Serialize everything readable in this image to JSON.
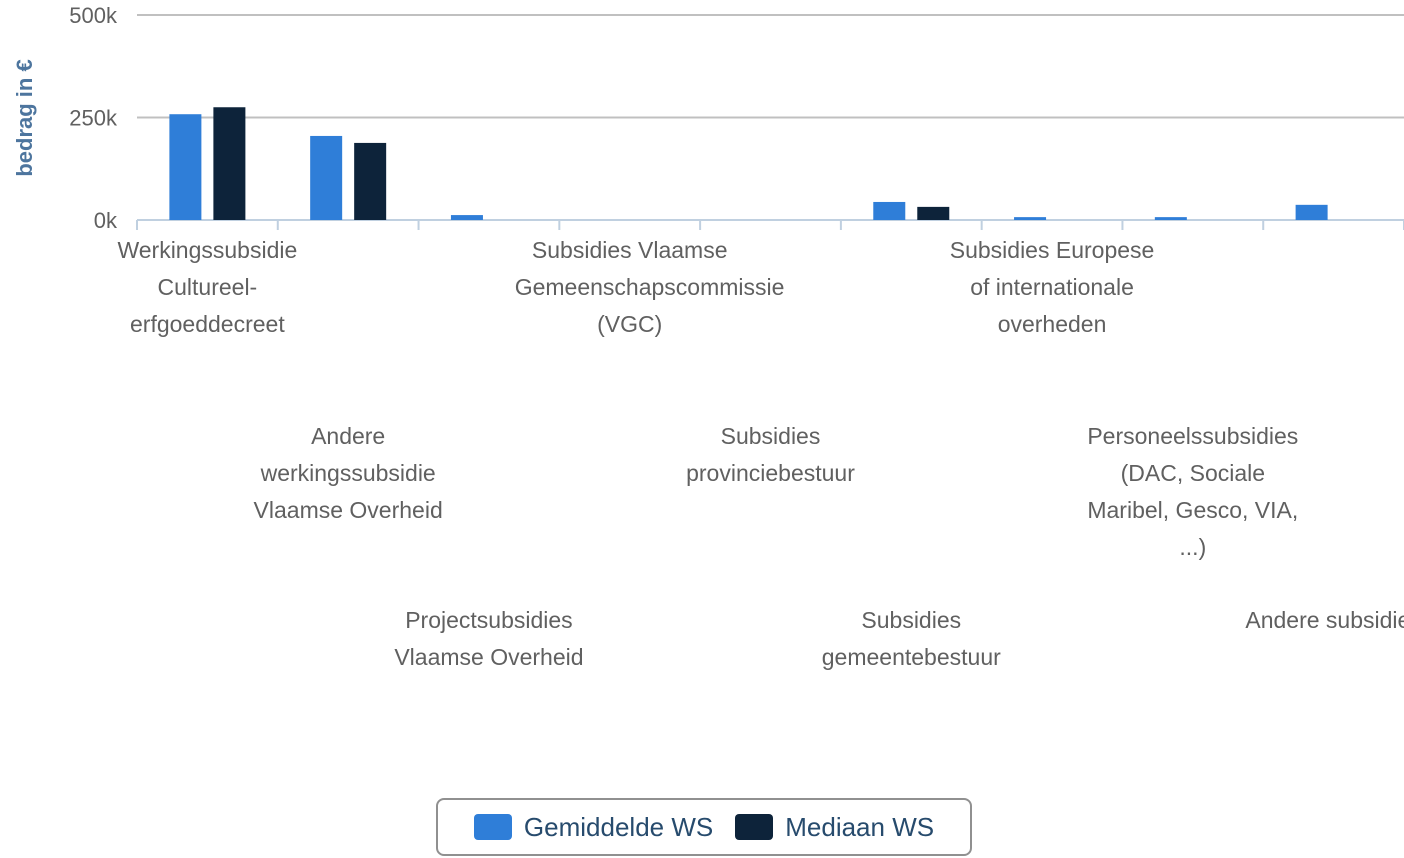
{
  "chart_data": {
    "type": "bar",
    "y_axis_label": "bedrag in €",
    "categories": [
      "Werkingssubsidie Cultureel-erfgoeddecreet",
      "Andere werkingssubsidie Vlaamse Overheid",
      "Projectsubsidies Vlaamse Overheid",
      "Subsidies Vlaamse Gemeenschapscommissie (VGC)",
      "Subsidies provinciebestuur",
      "Subsidies gemeentebestuur",
      "Subsidies Europese of internationale overheden",
      "Personeelssubsidies (DAC, Sociale Maribel, Gesco, VIA, ...)",
      "Andere subsidies"
    ],
    "series": [
      {
        "name": "Gemiddelde WS",
        "color": "#2f7ed8",
        "values": [
          258000,
          205000,
          12000,
          0,
          0,
          44000,
          7000,
          7000,
          37000
        ]
      },
      {
        "name": "Mediaan WS",
        "color": "#0d233a",
        "values": [
          275000,
          188000,
          0,
          0,
          0,
          32000,
          0,
          0,
          0
        ]
      }
    ],
    "ylim": [
      0,
      500000
    ],
    "yticks": [
      {
        "value": 0,
        "label": "0k"
      },
      {
        "value": 250000,
        "label": "250k"
      },
      {
        "value": 500000,
        "label": "500k"
      }
    ],
    "grid": true,
    "legend": "bottom"
  }
}
